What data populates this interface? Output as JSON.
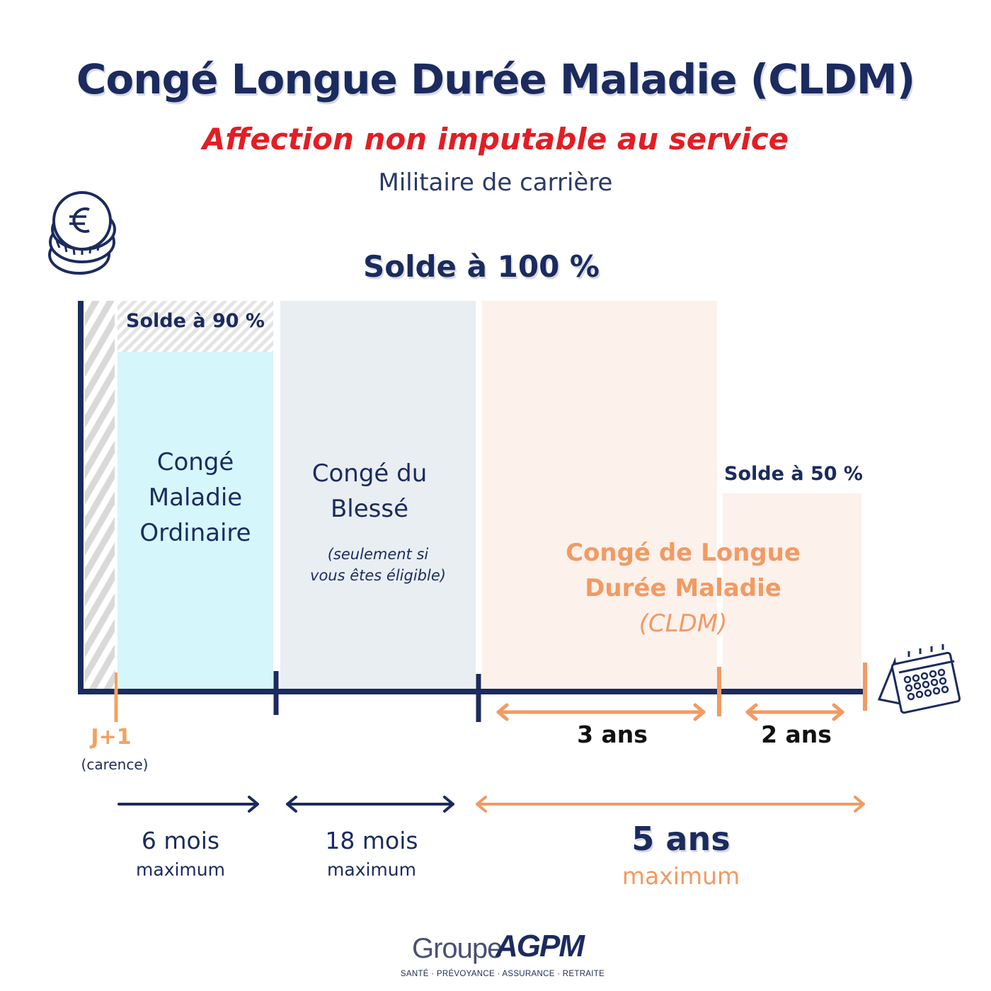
{
  "header": {
    "title": "Congé Longue Durée Maladie (CLDM)",
    "subtitle": "Affection non imputable au service",
    "audience": "Militaire de carrière"
  },
  "solde_100_label": "Solde à 100 %",
  "blocks": {
    "cmo": {
      "solde_label": "Solde à 90 %",
      "name_lines": [
        "Congé",
        "Maladie",
        "Ordinaire"
      ],
      "duration": "6 mois",
      "duration_note": "maximum"
    },
    "cb": {
      "name_lines": [
        "Congé du",
        "Blessé"
      ],
      "note_lines": [
        "(seulement si",
        "vous êtes éligible)"
      ],
      "duration": "18 mois",
      "duration_note": "maximum"
    },
    "cldm": {
      "name_lines": [
        "Congé de Longue",
        "Durée Maladie"
      ],
      "abbr": "(CLDM)",
      "phase1": "3 ans",
      "phase2": "2  ans",
      "phase2_solde_label": "Solde à 50 %",
      "duration": "5 ans",
      "duration_note": "maximum"
    }
  },
  "timeline": {
    "start": "J+1",
    "start_note": "(carence)"
  },
  "icons": {
    "top_left": "euro-coins-icon",
    "axis_end": "calendar-icon"
  },
  "logo": {
    "groupe": "Groupe",
    "brand": "AGPM",
    "tagline": "SANTÉ · PRÉVOYANCE · ASSURANCE · RETRAITE"
  },
  "colors": {
    "navy": "#1b2b5e",
    "red": "#e31d24",
    "orange": "#f29a63",
    "cmo": "#d5f6fb",
    "cb": "#e9eef2",
    "cldm": "#fdf1ec"
  }
}
